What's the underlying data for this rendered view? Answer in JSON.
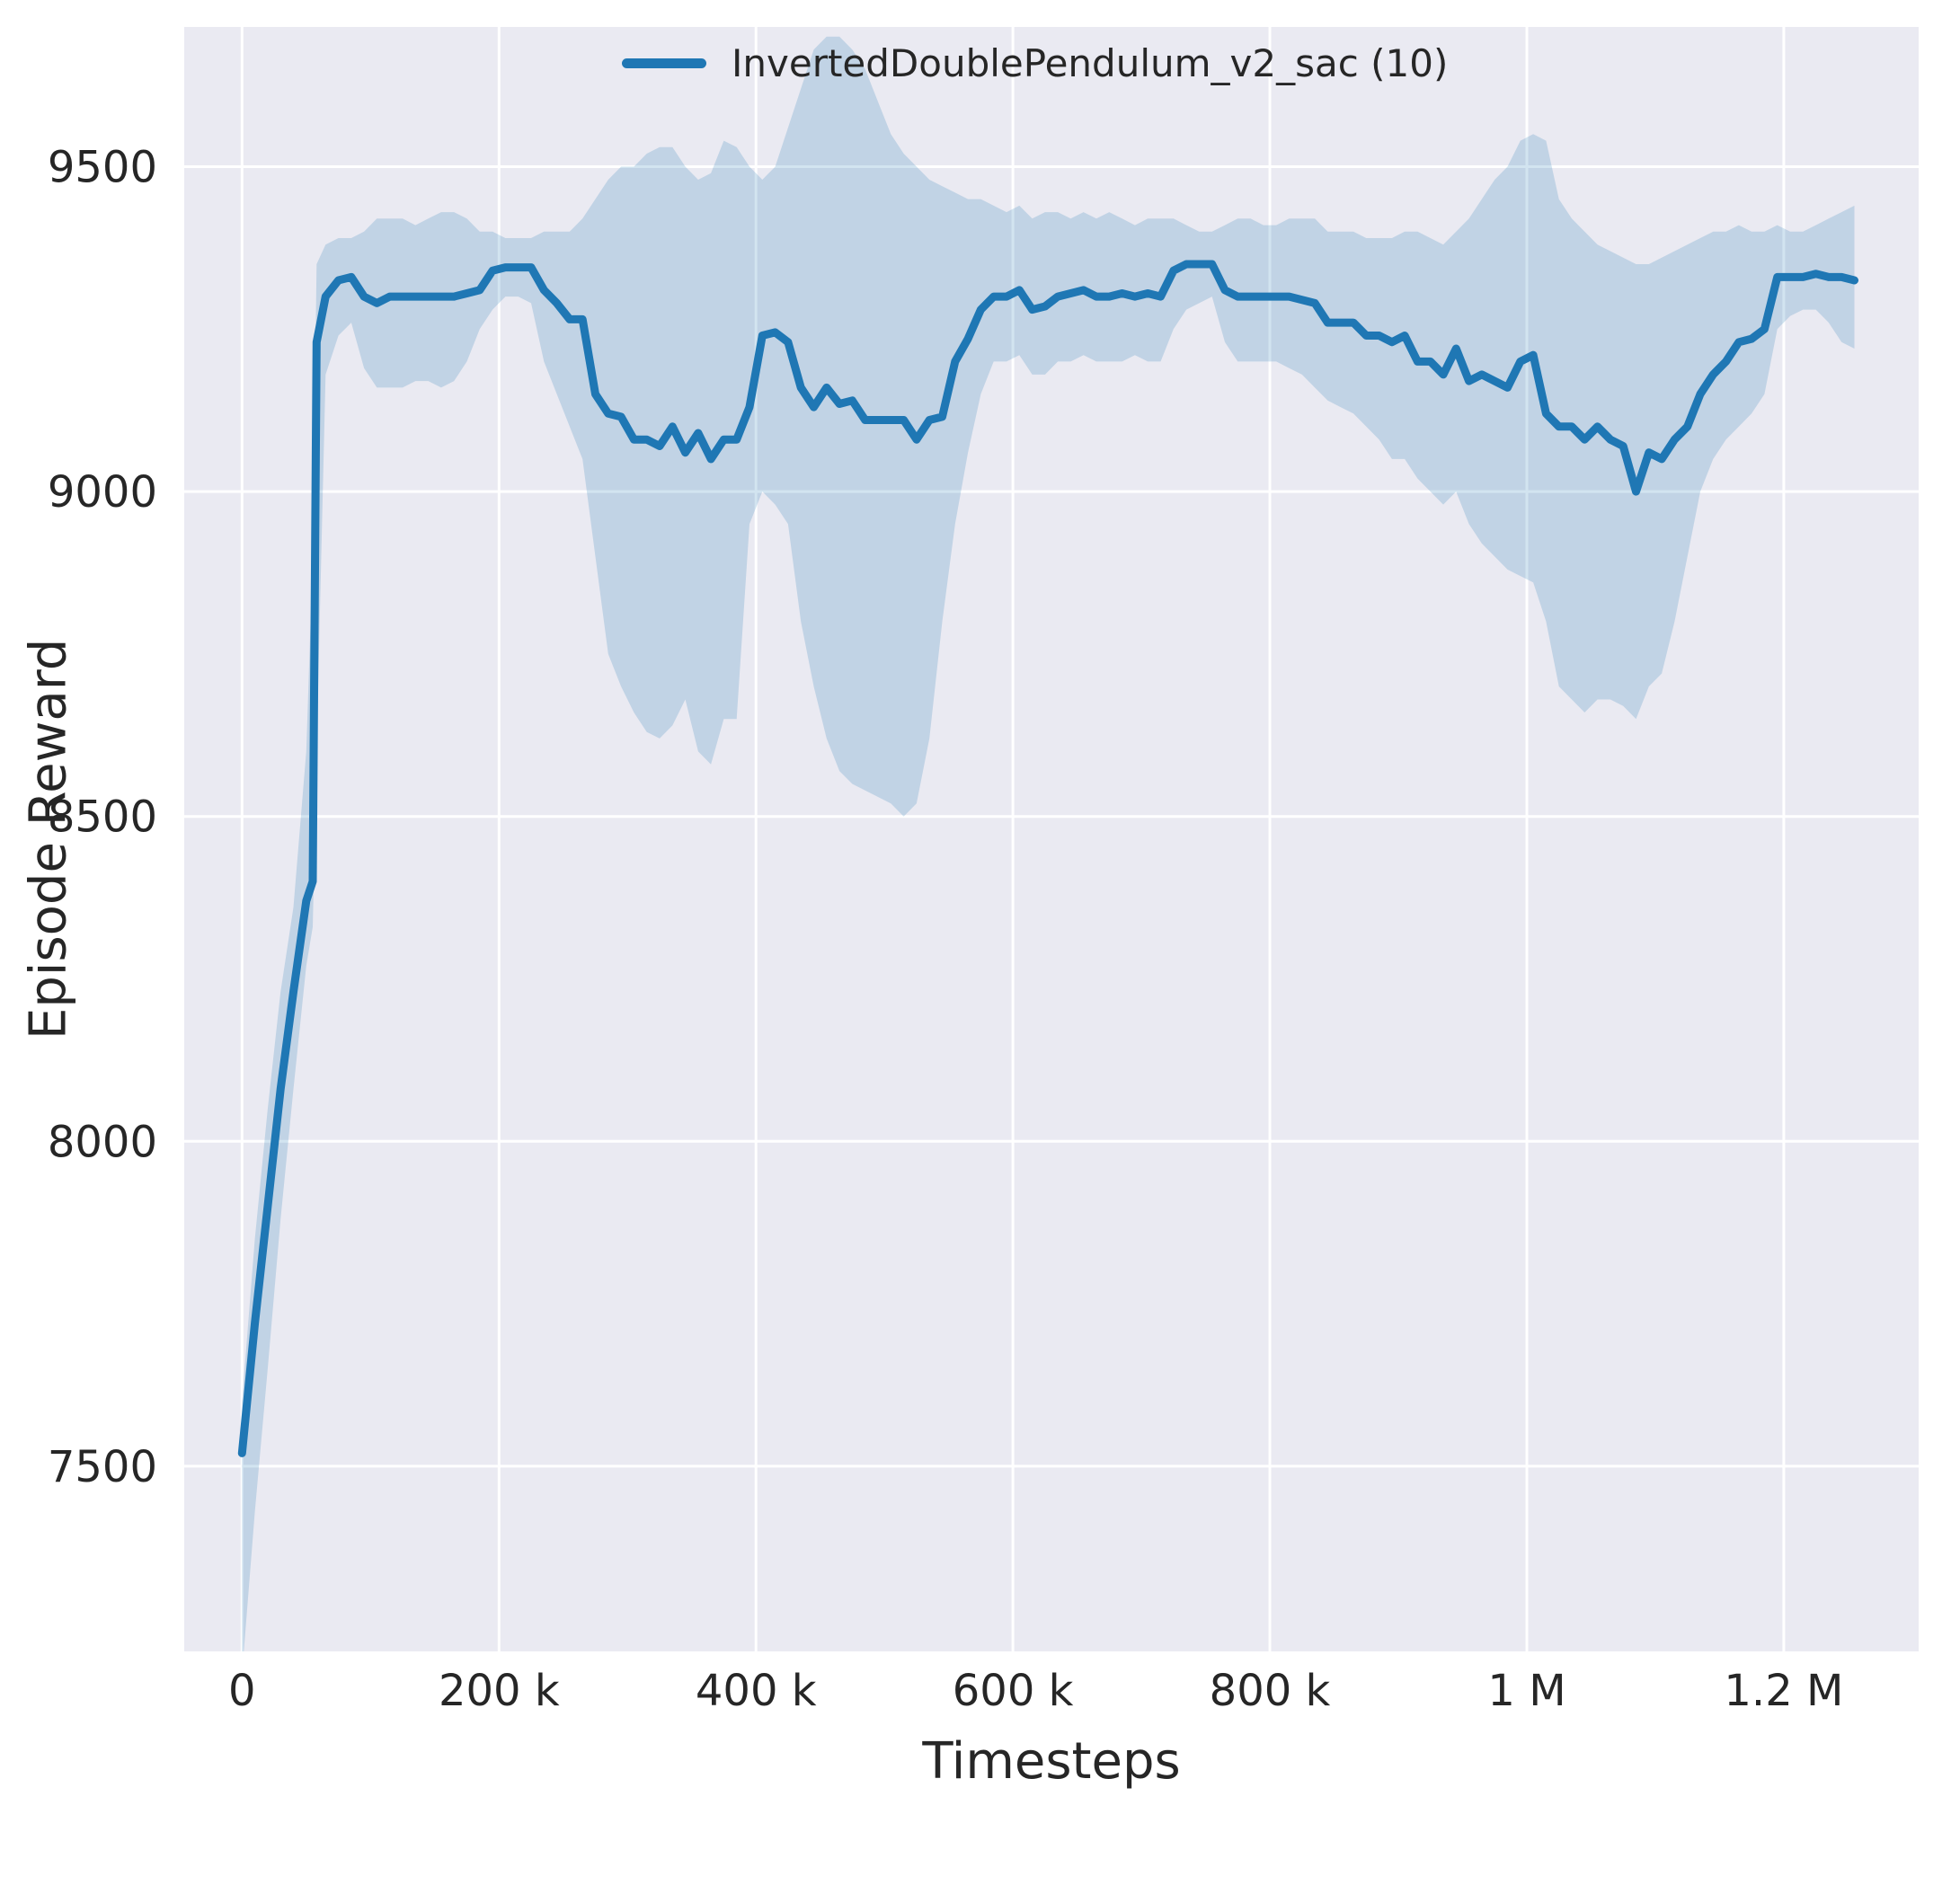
{
  "figure": {
    "background": "#ffffff",
    "plot_background": "#eaeaf2",
    "grid_color": "#ffffff"
  },
  "chart_data": {
    "type": "line",
    "title": "",
    "xlabel": "Timesteps",
    "ylabel": "Episode Reward",
    "grid": true,
    "legend_position": "upper center-right inside",
    "legend": [
      {
        "label": "InvertedDoublePendulum_v2_sac (10)",
        "color": "#1f77b4"
      }
    ],
    "xlim": [
      -45000,
      1305000
    ],
    "ylim": [
      7215,
      9715
    ],
    "x_ticks": [
      {
        "v": 0,
        "label": "0"
      },
      {
        "v": 200000,
        "label": "200 k"
      },
      {
        "v": 400000,
        "label": "400 k"
      },
      {
        "v": 600000,
        "label": "600 k"
      },
      {
        "v": 800000,
        "label": "800 k"
      },
      {
        "v": 1000000,
        "label": "1 M"
      },
      {
        "v": 1200000,
        "label": "1.2 M"
      }
    ],
    "y_ticks": [
      {
        "v": 7500,
        "label": "7500"
      },
      {
        "v": 8000,
        "label": "8000"
      },
      {
        "v": 8500,
        "label": "8500"
      },
      {
        "v": 9000,
        "label": "9000"
      },
      {
        "v": 9500,
        "label": "9500"
      }
    ],
    "series": [
      {
        "name": "InvertedDoublePendulum_v2_sac (10)",
        "color": "#1f77b4",
        "band_color": "#1f77b433",
        "x": [
          0,
          10000,
          20000,
          30000,
          40000,
          50000,
          55000,
          58000,
          65000,
          75000,
          85000,
          95000,
          105000,
          115000,
          125000,
          135000,
          145000,
          155000,
          165000,
          175000,
          185000,
          195000,
          205000,
          215000,
          225000,
          235000,
          245000,
          255000,
          265000,
          275000,
          285000,
          295000,
          305000,
          315000,
          325000,
          335000,
          345000,
          355000,
          365000,
          375000,
          385000,
          395000,
          405000,
          415000,
          425000,
          435000,
          445000,
          455000,
          465000,
          475000,
          485000,
          495000,
          505000,
          515000,
          525000,
          535000,
          545000,
          555000,
          565000,
          575000,
          585000,
          595000,
          605000,
          615000,
          625000,
          635000,
          645000,
          655000,
          665000,
          675000,
          685000,
          695000,
          705000,
          715000,
          725000,
          735000,
          745000,
          755000,
          765000,
          775000,
          785000,
          795000,
          805000,
          815000,
          825000,
          835000,
          845000,
          855000,
          865000,
          875000,
          885000,
          895000,
          905000,
          915000,
          925000,
          935000,
          945000,
          955000,
          965000,
          975000,
          985000,
          995000,
          1005000,
          1015000,
          1025000,
          1035000,
          1045000,
          1055000,
          1065000,
          1075000,
          1085000,
          1095000,
          1105000,
          1115000,
          1125000,
          1135000,
          1145000,
          1155000,
          1165000,
          1175000,
          1185000,
          1195000,
          1205000,
          1215000,
          1225000,
          1235000,
          1245000,
          1255000
        ],
        "mean": [
          7520,
          7720,
          7900,
          8080,
          8230,
          8370,
          8400,
          9230,
          9300,
          9325,
          9330,
          9300,
          9290,
          9300,
          9300,
          9300,
          9300,
          9300,
          9300,
          9305,
          9310,
          9340,
          9345,
          9345,
          9345,
          9310,
          9290,
          9265,
          9265,
          9150,
          9120,
          9115,
          9080,
          9080,
          9070,
          9100,
          9060,
          9090,
          9050,
          9080,
          9080,
          9130,
          9240,
          9245,
          9230,
          9160,
          9130,
          9160,
          9135,
          9140,
          9110,
          9110,
          9110,
          9110,
          9080,
          9110,
          9115,
          9200,
          9235,
          9280,
          9300,
          9300,
          9310,
          9280,
          9285,
          9300,
          9305,
          9310,
          9300,
          9300,
          9305,
          9300,
          9305,
          9300,
          9340,
          9350,
          9350,
          9350,
          9310,
          9300,
          9300,
          9300,
          9300,
          9300,
          9295,
          9290,
          9260,
          9260,
          9260,
          9240,
          9240,
          9230,
          9240,
          9200,
          9200,
          9180,
          9220,
          9170,
          9180,
          9170,
          9160,
          9200,
          9210,
          9120,
          9100,
          9100,
          9080,
          9100,
          9080,
          9070,
          9000,
          9060,
          9050,
          9080,
          9100,
          9150,
          9180,
          9200,
          9230,
          9235,
          9250,
          9330,
          9330,
          9330,
          9335,
          9330,
          9330,
          9325
        ],
        "lo": [
          7180,
          7430,
          7650,
          7880,
          8080,
          8270,
          8330,
          8600,
          9180,
          9240,
          9260,
          9190,
          9160,
          9160,
          9160,
          9170,
          9170,
          9160,
          9170,
          9200,
          9250,
          9280,
          9300,
          9300,
          9290,
          9200,
          9150,
          9100,
          9050,
          8900,
          8750,
          8700,
          8660,
          8630,
          8620,
          8640,
          8680,
          8600,
          8580,
          8650,
          8650,
          8950,
          9000,
          8980,
          8950,
          8800,
          8700,
          8620,
          8570,
          8550,
          8540,
          8530,
          8520,
          8500,
          8520,
          8620,
          8800,
          8950,
          9060,
          9150,
          9200,
          9200,
          9210,
          9180,
          9180,
          9200,
          9200,
          9210,
          9200,
          9200,
          9200,
          9210,
          9200,
          9200,
          9250,
          9280,
          9290,
          9300,
          9230,
          9200,
          9200,
          9200,
          9200,
          9190,
          9180,
          9160,
          9140,
          9130,
          9120,
          9100,
          9080,
          9050,
          9050,
          9020,
          9000,
          8980,
          9000,
          8950,
          8920,
          8900,
          8880,
          8870,
          8860,
          8800,
          8700,
          8680,
          8660,
          8680,
          8680,
          8670,
          8650,
          8700,
          8720,
          8800,
          8900,
          9000,
          9050,
          9080,
          9100,
          9120,
          9150,
          9250,
          9270,
          9280,
          9280,
          9260,
          9230,
          9220
        ],
        "hi": [
          7600,
          7850,
          8050,
          8230,
          8360,
          8600,
          8900,
          9350,
          9380,
          9390,
          9390,
          9400,
          9420,
          9420,
          9420,
          9410,
          9420,
          9430,
          9430,
          9420,
          9400,
          9400,
          9390,
          9390,
          9390,
          9400,
          9400,
          9400,
          9420,
          9450,
          9480,
          9500,
          9500,
          9520,
          9530,
          9530,
          9500,
          9480,
          9490,
          9540,
          9530,
          9500,
          9480,
          9500,
          9560,
          9620,
          9680,
          9700,
          9700,
          9680,
          9650,
          9600,
          9550,
          9520,
          9500,
          9480,
          9470,
          9460,
          9450,
          9450,
          9440,
          9430,
          9440,
          9420,
          9430,
          9430,
          9420,
          9430,
          9420,
          9430,
          9420,
          9410,
          9420,
          9420,
          9420,
          9410,
          9400,
          9400,
          9410,
          9420,
          9420,
          9410,
          9410,
          9420,
          9420,
          9420,
          9400,
          9400,
          9400,
          9390,
          9390,
          9390,
          9400,
          9400,
          9390,
          9380,
          9400,
          9420,
          9450,
          9480,
          9500,
          9540,
          9550,
          9540,
          9450,
          9420,
          9400,
          9380,
          9370,
          9360,
          9350,
          9350,
          9360,
          9370,
          9380,
          9390,
          9400,
          9400,
          9410,
          9400,
          9400,
          9410,
          9400,
          9400,
          9410,
          9420,
          9430,
          9440
        ]
      }
    ]
  }
}
